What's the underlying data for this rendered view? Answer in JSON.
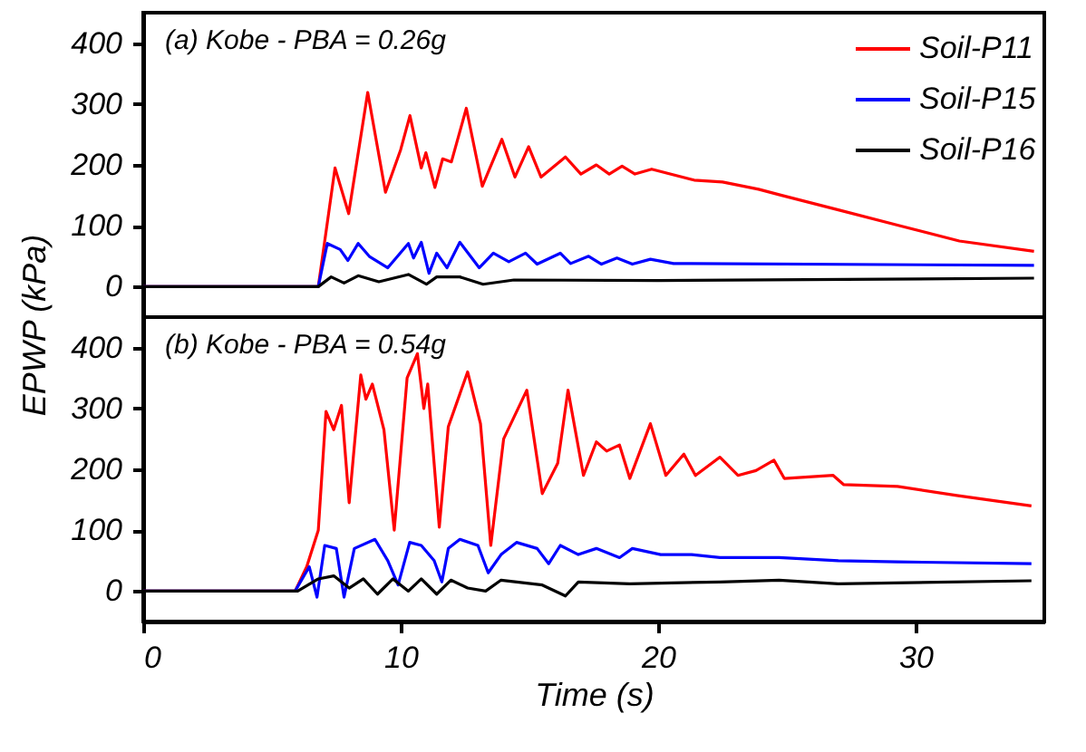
{
  "chart_data": [
    {
      "type": "line",
      "ylabel": "EPWP (kPa)",
      "annotations": [
        "(a) Kobe - PBA = 0.26g"
      ],
      "xlim": [
        0,
        35
      ],
      "xticks": [
        0,
        10,
        20,
        30
      ],
      "ylim": [
        -50,
        450
      ],
      "yticks": [
        0,
        100,
        200,
        300,
        400
      ],
      "tick_labels": "y",
      "legend": "top right",
      "grid": false,
      "line_style": "solid",
      "marker": "none",
      "series": [
        {
          "name": "Soil-P11",
          "color": "#ff0000",
          "x": [
            0,
            6.8,
            7.45,
            7.98,
            8.72,
            9.41,
            10.0,
            10.36,
            10.8,
            10.98,
            11.33,
            11.63,
            11.97,
            12.55,
            13.17,
            13.93,
            14.44,
            14.97,
            15.45,
            16.4,
            17.0,
            17.6,
            18.1,
            18.6,
            19.1,
            19.75,
            21.4,
            22.5,
            23.9,
            24.8,
            27.1,
            29.4,
            31.7,
            34.6
          ],
          "values": [
            0,
            0,
            195,
            120,
            319,
            155,
            225,
            281,
            195,
            220,
            163,
            210,
            205,
            293,
            165,
            242,
            180,
            230,
            180,
            213,
            185,
            200,
            185,
            198,
            185,
            193,
            175,
            172,
            160,
            150,
            125,
            100,
            75,
            58
          ]
        },
        {
          "name": "Soil-P15",
          "color": "#0000ff",
          "x": [
            0,
            6.8,
            7.15,
            7.65,
            7.95,
            8.35,
            8.8,
            9.5,
            10.3,
            10.5,
            10.8,
            11.1,
            11.4,
            11.8,
            12.3,
            13.05,
            13.6,
            14.2,
            14.85,
            15.3,
            16.2,
            16.6,
            17.3,
            17.8,
            18.4,
            19.0,
            19.7,
            20.6,
            34.6
          ],
          "values": [
            0,
            0,
            71,
            61,
            43,
            71,
            49,
            31,
            71,
            47,
            73,
            22,
            55,
            31,
            73,
            31,
            55,
            41,
            55,
            37,
            55,
            38,
            50,
            37,
            47,
            37,
            45,
            38,
            35
          ]
        },
        {
          "name": "Soil-P16",
          "color": "#000000",
          "x": [
            0,
            6.8,
            7.3,
            7.8,
            8.35,
            9.15,
            10.3,
            11.0,
            11.4,
            12.3,
            13.2,
            14.4,
            20.0,
            34.6
          ],
          "values": [
            0,
            0,
            16,
            6,
            18,
            8,
            20,
            4,
            16,
            16,
            4,
            11,
            10,
            14
          ]
        }
      ]
    },
    {
      "type": "line",
      "xlabel": "Time (s)",
      "annotations": [
        "(b) Kobe - PBA = 0.54g"
      ],
      "xlim": [
        0,
        35
      ],
      "xticks": [
        0,
        10,
        20,
        30
      ],
      "ylim": [
        -50,
        450
      ],
      "yticks": [
        0,
        100,
        200,
        300,
        400
      ],
      "grid": false,
      "line_style": "solid",
      "marker": "none",
      "series": [
        {
          "color": "#ff0000",
          "x": [
            0,
            5.9,
            6.35,
            6.8,
            7.1,
            7.4,
            7.7,
            8.0,
            8.45,
            8.65,
            8.9,
            9.35,
            9.75,
            10.25,
            10.65,
            10.9,
            11.05,
            11.5,
            11.85,
            12.6,
            13.1,
            13.5,
            14.0,
            14.9,
            15.5,
            16.1,
            16.5,
            17.1,
            17.6,
            18.0,
            18.5,
            18.9,
            19.7,
            20.3,
            21.0,
            21.45,
            22.4,
            23.1,
            23.8,
            24.5,
            24.9,
            26.8,
            27.2,
            29.3,
            31.6,
            34.5
          ],
          "values": [
            0,
            0,
            40,
            100,
            295,
            265,
            305,
            145,
            355,
            315,
            340,
            265,
            100,
            350,
            390,
            300,
            340,
            105,
            270,
            360,
            275,
            75,
            250,
            330,
            160,
            210,
            330,
            190,
            245,
            230,
            240,
            185,
            275,
            190,
            225,
            190,
            220,
            190,
            198,
            215,
            185,
            190,
            175,
            172,
            157,
            140
          ]
        },
        {
          "color": "#0000ff",
          "x": [
            0,
            5.9,
            6.45,
            6.75,
            7.05,
            7.5,
            7.8,
            8.2,
            9.0,
            9.5,
            9.9,
            10.35,
            10.8,
            11.3,
            11.6,
            11.85,
            12.3,
            13.0,
            13.4,
            13.9,
            14.5,
            15.3,
            15.75,
            16.2,
            16.9,
            17.6,
            18.5,
            19.0,
            20.1,
            21.3,
            22.4,
            24.7,
            27.0,
            29.3,
            34.5
          ],
          "values": [
            0,
            0,
            40,
            -10,
            75,
            70,
            -10,
            70,
            85,
            50,
            10,
            80,
            75,
            50,
            15,
            70,
            85,
            75,
            30,
            60,
            80,
            70,
            45,
            75,
            60,
            70,
            55,
            70,
            60,
            60,
            55,
            55,
            50,
            48,
            45
          ]
        },
        {
          "color": "#000000",
          "x": [
            0,
            6.0,
            6.8,
            7.4,
            8.0,
            8.55,
            9.1,
            9.7,
            10.3,
            10.8,
            11.4,
            11.95,
            12.6,
            13.3,
            13.9,
            15.5,
            16.4,
            16.9,
            18.9,
            22.4,
            24.7,
            27.0,
            34.5
          ],
          "values": [
            0,
            0,
            20,
            25,
            5,
            20,
            -5,
            20,
            0,
            20,
            -5,
            18,
            5,
            0,
            18,
            10,
            -8,
            15,
            12,
            15,
            18,
            12,
            17
          ]
        }
      ]
    }
  ]
}
